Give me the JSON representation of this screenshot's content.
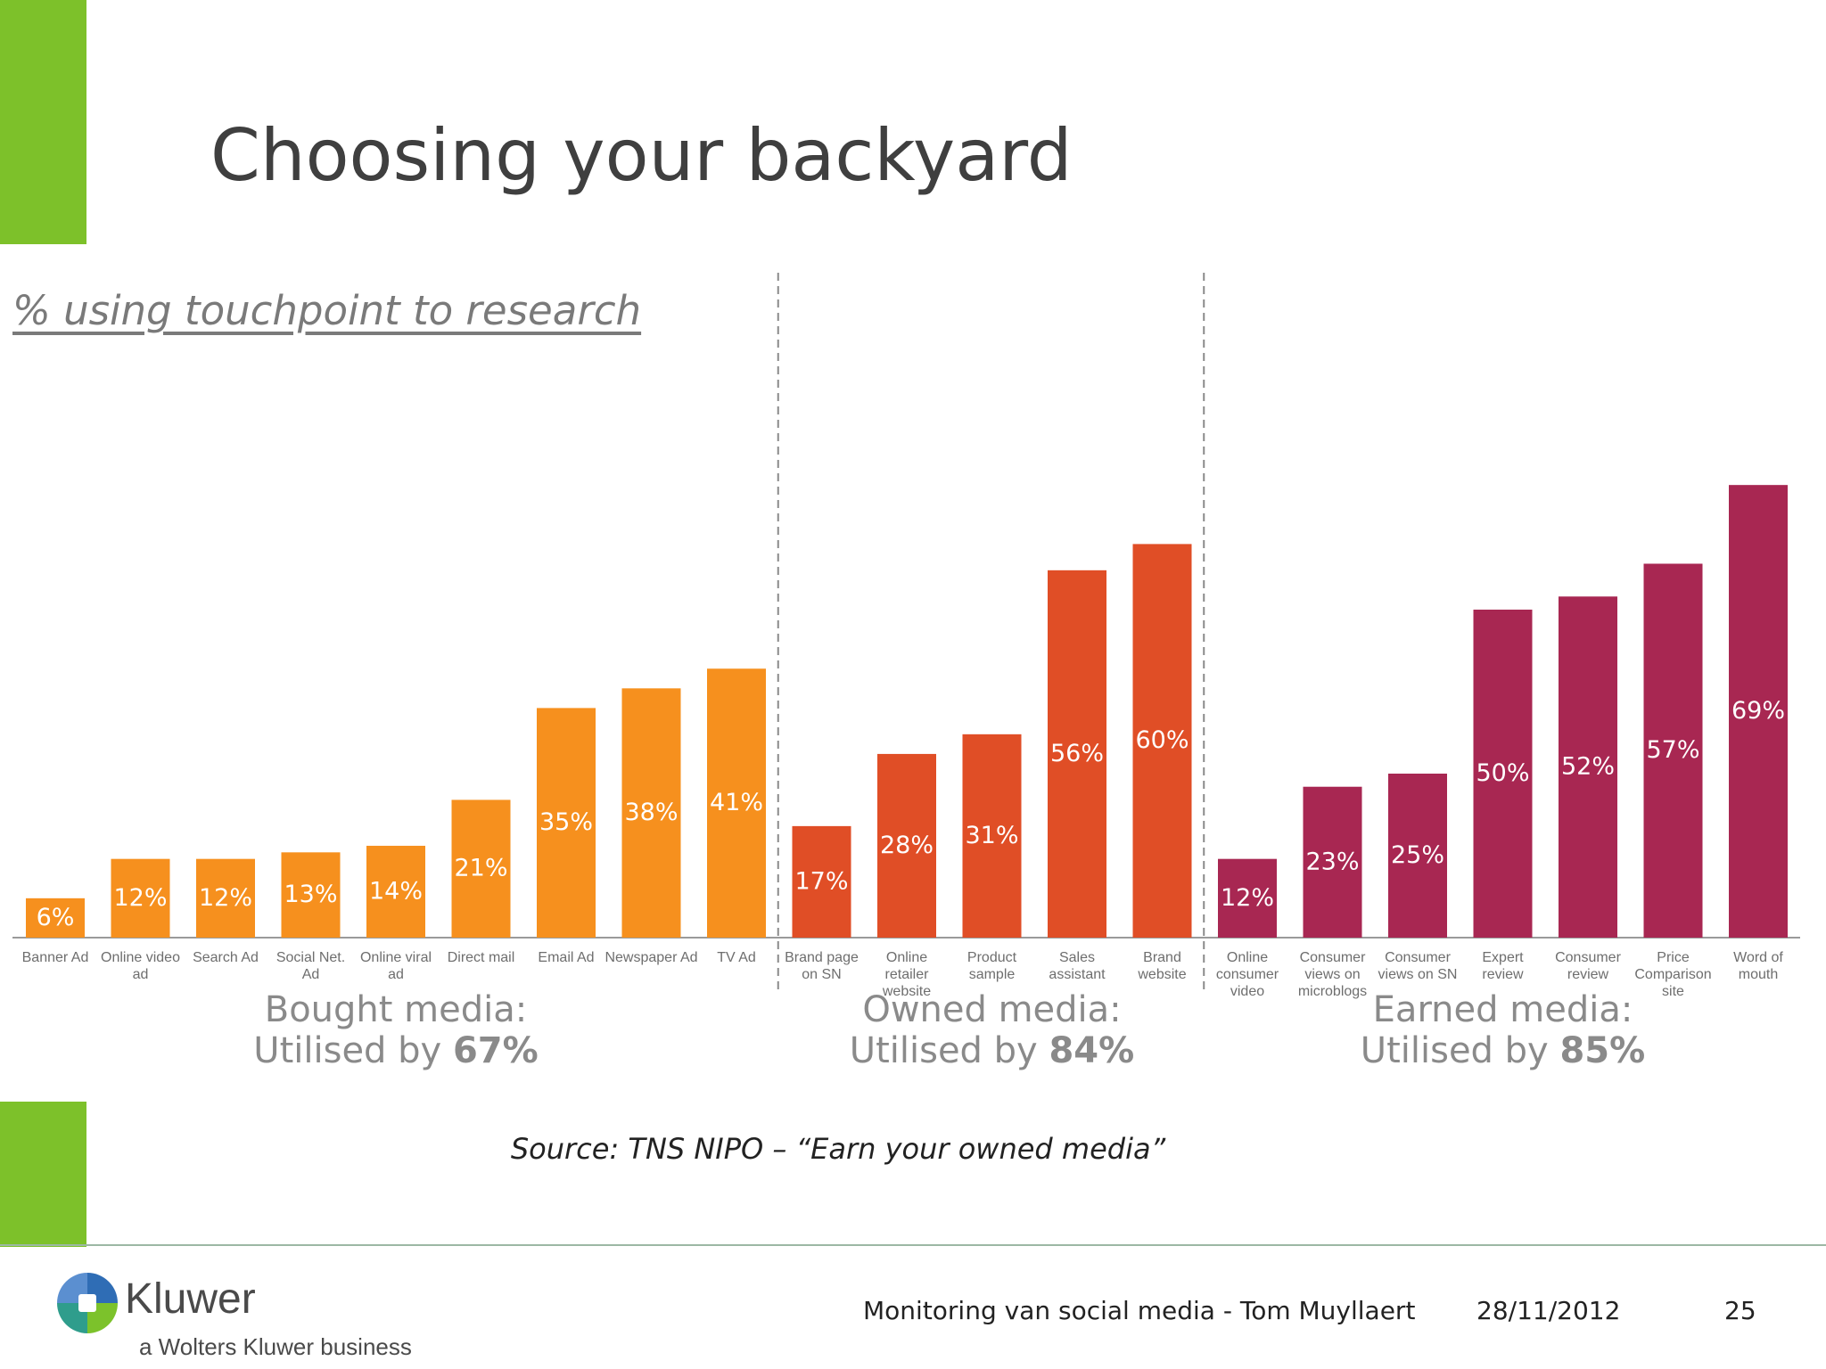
{
  "slide": {
    "title": "Choosing your backyard",
    "source": "Source: TNS NIPO – “Earn your owned media”"
  },
  "footer": {
    "logo_name": "Kluwer",
    "logo_tagline": "a Wolters Kluwer business",
    "presentation": "Monitoring van social media - Tom Muyllaert",
    "date": "28/11/2012",
    "page": "25"
  },
  "colors": {
    "accent_green": "#7dc12a",
    "bought": "#f6901e",
    "owned": "#e04e26",
    "earned": "#a82752"
  },
  "chart_data": {
    "type": "bar",
    "title": "% using touchpoint to research",
    "ylim": [
      0,
      75
    ],
    "value_suffix": "%",
    "groups": [
      {
        "name": "Bought media",
        "summary_line1": "Bought media:",
        "summary_prefix": "Utilised by ",
        "summary_value": "67%",
        "color": "#f6901e",
        "categories": [
          "Banner Ad",
          "Online video ad",
          "Search Ad",
          "Social Net. Ad",
          "Online viral ad",
          "Direct mail",
          "Email Ad",
          "Newspaper Ad",
          "TV Ad"
        ],
        "values": [
          6,
          12,
          12,
          13,
          14,
          21,
          35,
          38,
          41
        ]
      },
      {
        "name": "Owned media",
        "summary_line1": "Owned media:",
        "summary_prefix": "Utilised by ",
        "summary_value": "84%",
        "color": "#e04e26",
        "categories": [
          "Brand page on SN",
          "Online retailer website",
          "Product sample",
          "Sales assistant",
          "Brand website"
        ],
        "values": [
          17,
          28,
          31,
          56,
          60
        ]
      },
      {
        "name": "Earned media",
        "summary_line1": "Earned media:",
        "summary_prefix": "Utilised by ",
        "summary_value": "85%",
        "color": "#a82752",
        "categories": [
          "Online consumer video",
          "Consumer views on microblogs",
          "Consumer views on SN",
          "Expert review",
          "Consumer review",
          "Price Comparison site",
          "Word of mouth"
        ],
        "values": [
          12,
          23,
          25,
          50,
          52,
          57,
          69
        ]
      }
    ]
  }
}
